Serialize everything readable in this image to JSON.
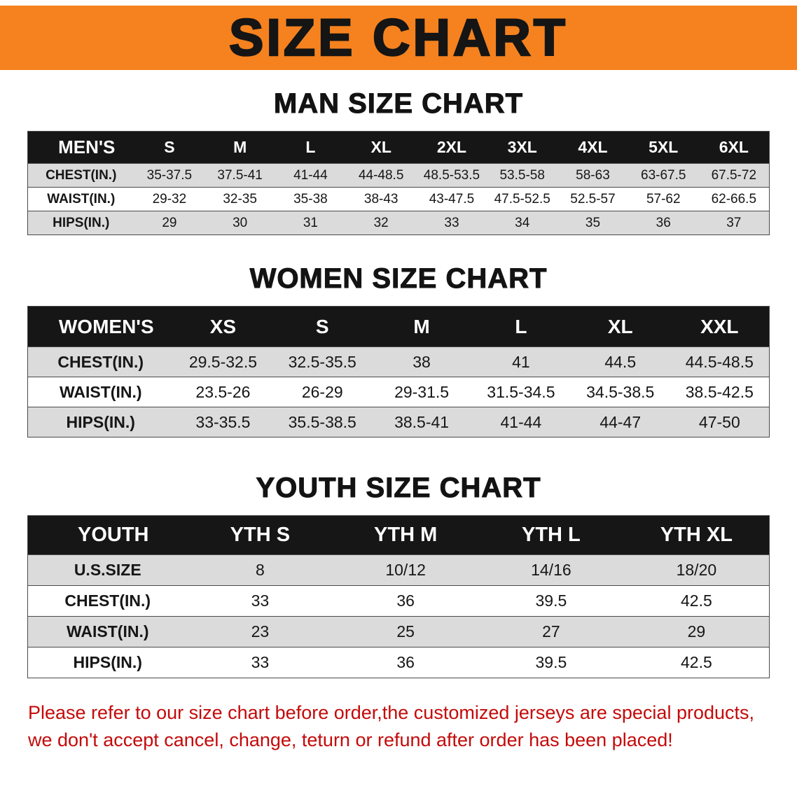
{
  "banner": {
    "title": "SIZE CHART"
  },
  "colors": {
    "banner_bg": "#F5821F",
    "header_bg": "#161616",
    "row_gray": "#DBDBDB",
    "disclaimer_red": "#C40A0A"
  },
  "sections": [
    {
      "heading": "MAN SIZE CHART",
      "table": {
        "label": "MEN'S",
        "columns": [
          "S",
          "M",
          "L",
          "XL",
          "2XL",
          "3XL",
          "4XL",
          "5XL",
          "6XL"
        ],
        "rows": [
          {
            "label": "CHEST(IN.)",
            "values": [
              "35-37.5",
              "37.5-41",
              "41-44",
              "44-48.5",
              "48.5-53.5",
              "53.5-58",
              "58-63",
              "63-67.5",
              "67.5-72"
            ]
          },
          {
            "label": "WAIST(IN.)",
            "values": [
              "29-32",
              "32-35",
              "35-38",
              "38-43",
              "43-47.5",
              "47.5-52.5",
              "52.5-57",
              "57-62",
              "62-66.5"
            ]
          },
          {
            "label": "HIPS(IN.)",
            "values": [
              "29",
              "30",
              "31",
              "32",
              "33",
              "34",
              "35",
              "36",
              "37"
            ]
          }
        ]
      }
    },
    {
      "heading": "WOMEN SIZE CHART",
      "table": {
        "label": "WOMEN'S",
        "columns": [
          "XS",
          "S",
          "M",
          "L",
          "XL",
          "XXL"
        ],
        "rows": [
          {
            "label": "CHEST(IN.)",
            "values": [
              "29.5-32.5",
              "32.5-35.5",
              "38",
              "41",
              "44.5",
              "44.5-48.5"
            ]
          },
          {
            "label": "WAIST(IN.)",
            "values": [
              "23.5-26",
              "26-29",
              "29-31.5",
              "31.5-34.5",
              "34.5-38.5",
              "38.5-42.5"
            ]
          },
          {
            "label": "HIPS(IN.)",
            "values": [
              "33-35.5",
              "35.5-38.5",
              "38.5-41",
              "41-44",
              "44-47",
              "47-50"
            ]
          }
        ]
      }
    },
    {
      "heading": "YOUTH SIZE CHART",
      "table": {
        "label": "YOUTH",
        "columns": [
          "YTH S",
          "YTH M",
          "YTH L",
          "YTH XL"
        ],
        "rows": [
          {
            "label": "U.S.SIZE",
            "values": [
              "8",
              "10/12",
              "14/16",
              "18/20"
            ]
          },
          {
            "label": "CHEST(IN.)",
            "values": [
              "33",
              "36",
              "39.5",
              "42.5"
            ]
          },
          {
            "label": "WAIST(IN.)",
            "values": [
              "23",
              "25",
              "27",
              "29"
            ]
          },
          {
            "label": "HIPS(IN.)",
            "values": [
              "33",
              "36",
              "39.5",
              "42.5"
            ]
          }
        ]
      }
    }
  ],
  "disclaimer": {
    "line1": "Please refer to our size chart before order,the customized jerseys are special products,",
    "line2": "we don't accept cancel, change, teturn or refund after order has been placed!"
  }
}
